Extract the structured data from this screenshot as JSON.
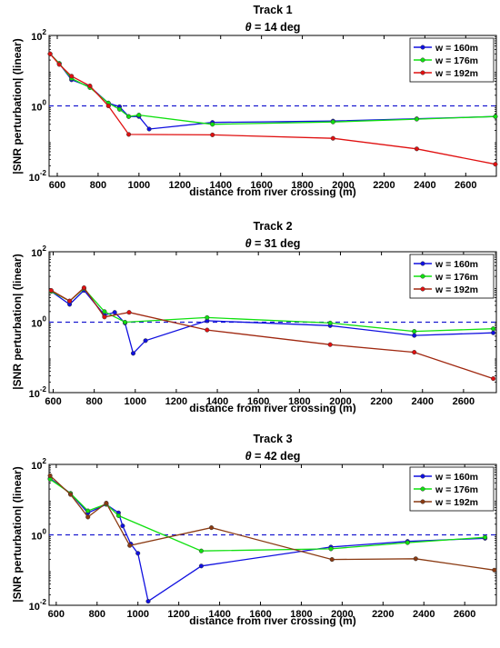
{
  "chart_data": [
    {
      "type": "line",
      "title": "Track 1",
      "subtitle_symbol": "θ",
      "subtitle_rest": " = 14 deg",
      "xlabel": "distance from river crossing (m)",
      "ylabel": "|SNR perturbation| (linear)",
      "xlim": [
        560,
        2750
      ],
      "ylim": [
        0.01,
        100
      ],
      "yscale": "log",
      "xticks": [
        600,
        800,
        1000,
        1200,
        1400,
        1600,
        1800,
        2000,
        2200,
        2400,
        2600
      ],
      "yticks": [
        {
          "base": "10",
          "exp": "2",
          "value": 100
        },
        {
          "base": "10",
          "exp": "0",
          "value": 1
        },
        {
          "base": "10",
          "exp": "-2",
          "value": 0.01
        }
      ],
      "reference_line": 1,
      "legend": "top-right",
      "series": [
        {
          "name": "w = 160m",
          "color": "#1010e0",
          "marker_color": "#1010e0",
          "x": [
            565,
            610,
            670,
            760,
            850,
            905,
            950,
            1000,
            1050,
            1360,
            1950,
            2360,
            2745
          ],
          "y": [
            30,
            16,
            5.5,
            3.5,
            1.2,
            0.95,
            0.5,
            0.5,
            0.22,
            0.34,
            0.37,
            0.43,
            0.5
          ]
        },
        {
          "name": "w = 176m",
          "color": "#10e010",
          "marker_color": "#10e010",
          "x": [
            565,
            610,
            670,
            760,
            850,
            905,
            950,
            1000,
            1360,
            1950,
            2360,
            2745
          ],
          "y": [
            30,
            16,
            6,
            3.3,
            1.2,
            0.8,
            0.5,
            0.55,
            0.3,
            0.35,
            0.42,
            0.5
          ]
        },
        {
          "name": "w = 192m",
          "color": "#e01010",
          "marker_color": "#e01010",
          "x": [
            565,
            610,
            670,
            760,
            850,
            950,
            1360,
            1950,
            2360,
            2745
          ],
          "y": [
            30,
            15,
            7,
            3.7,
            1.0,
            0.155,
            0.15,
            0.12,
            0.06,
            0.022
          ]
        }
      ]
    },
    {
      "type": "line",
      "title": "Track 2",
      "subtitle_symbol": "θ",
      "subtitle_rest": " = 31 deg",
      "xlabel": "distance from river crossing (m)",
      "ylabel": "|SNR perturbation| (linear)",
      "xlim": [
        580,
        2760
      ],
      "ylim": [
        0.01,
        100
      ],
      "yscale": "log",
      "xticks": [
        600,
        800,
        1000,
        1200,
        1400,
        1600,
        1800,
        2000,
        2200,
        2400,
        2600
      ],
      "yticks": [
        {
          "base": "10",
          "exp": "2",
          "value": 100
        },
        {
          "base": "10",
          "exp": "0",
          "value": 1
        },
        {
          "base": "10",
          "exp": "-2",
          "value": 0.01
        }
      ],
      "reference_line": 1,
      "legend": "top-right",
      "series": [
        {
          "name": "w = 160m",
          "color": "#1010e0",
          "marker_color": "#1010e0",
          "x": [
            590,
            680,
            750,
            850,
            900,
            950,
            990,
            1050,
            1350,
            1950,
            2360,
            2745
          ],
          "y": [
            7.5,
            3.2,
            8,
            1.6,
            1.9,
            0.95,
            0.13,
            0.3,
            1.1,
            0.8,
            0.42,
            0.5
          ]
        },
        {
          "name": "w = 176m",
          "color": "#10e010",
          "marker_color": "#10e010",
          "x": [
            590,
            680,
            750,
            850,
            950,
            1350,
            1950,
            2360,
            2745
          ],
          "y": [
            7.5,
            4,
            9,
            2,
            1.0,
            1.35,
            0.95,
            0.55,
            0.65
          ]
        },
        {
          "name": "w = 192m",
          "color": "#e01010",
          "marker_color": "#e01010",
          "line_color": "#a02810",
          "x": [
            590,
            680,
            750,
            850,
            970,
            1350,
            1950,
            2360,
            2745
          ],
          "y": [
            8,
            4,
            9.5,
            1.4,
            1.9,
            0.6,
            0.23,
            0.14,
            0.025
          ]
        }
      ]
    },
    {
      "type": "line",
      "title": "Track 3",
      "subtitle_symbol": "θ",
      "subtitle_rest": " = 42 deg",
      "xlabel": "distance from river crossing (m)",
      "ylabel": "|SNR perturbation| (linear)",
      "xlim": [
        565,
        2755
      ],
      "ylim": [
        0.01,
        100
      ],
      "yscale": "log",
      "xticks": [
        600,
        800,
        1000,
        1200,
        1400,
        1600,
        1800,
        2000,
        2200,
        2400,
        2600
      ],
      "yticks": [
        {
          "base": "10",
          "exp": "2",
          "value": 100
        },
        {
          "base": "10",
          "exp": "0",
          "value": 1
        },
        {
          "base": "10",
          "exp": "-2",
          "value": 0.01
        }
      ],
      "reference_line": 1,
      "legend": "top-right",
      "series": [
        {
          "name": "w = 160m",
          "color": "#1010e0",
          "marker_color": "#1010e0",
          "x": [
            570,
            670,
            755,
            845,
            905,
            925,
            965,
            1000,
            1050,
            1310,
            1945,
            2320,
            2700
          ],
          "y": [
            40,
            15,
            4.2,
            7.3,
            4.2,
            1.8,
            0.55,
            0.3,
            0.013,
            0.13,
            0.45,
            0.65,
            0.8
          ]
        },
        {
          "name": "w = 176m",
          "color": "#10e010",
          "marker_color": "#10e010",
          "x": [
            570,
            670,
            755,
            845,
            905,
            1310,
            1945,
            2320,
            2700
          ],
          "y": [
            38,
            15,
            4.8,
            7.5,
            3.5,
            0.35,
            0.4,
            0.6,
            0.85
          ]
        },
        {
          "name": "w = 192m",
          "color": "#8a3a12",
          "marker_color": "#8a3a12",
          "x": [
            570,
            670,
            755,
            845,
            960,
            1360,
            1950,
            2360,
            2745
          ],
          "y": [
            48,
            14,
            3.2,
            8,
            0.5,
            1.6,
            0.2,
            0.21,
            0.1
          ]
        }
      ]
    }
  ]
}
